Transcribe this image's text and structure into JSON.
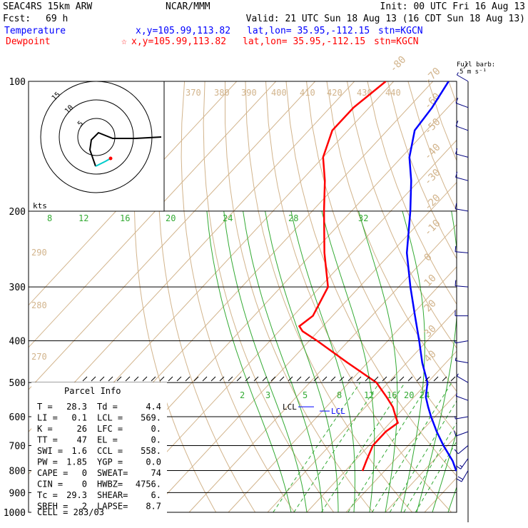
{
  "header": {
    "model": "SEAC4RS 15km ARW",
    "org": "NCAR/MMM",
    "init": "Init: 00 UTC Fri 16 Aug 13",
    "fcst_label": "Fcst:",
    "fcst_hours": "69 h",
    "valid": "Valid: 21 UTC Sun 18 Aug 13 (16 CDT Sun 18 Aug 13)"
  },
  "legend": {
    "temperature": {
      "label": "Temperature",
      "color": "#0000ff",
      "xy": "x,y=105.99,113.82",
      "latlon": "lat,lon= 35.95,-112.15",
      "stn": "stn=KGCN"
    },
    "dewpoint": {
      "label": "Dewpoint",
      "color": "#ff0000",
      "marker": "☆",
      "xy": "x,y=105.99,113.82",
      "latlon": "lat,lon= 35.95,-112.15",
      "stn": "stn=KGCN"
    }
  },
  "barb_key": {
    "line1": "Full barb:",
    "line2": "5 m s⁻¹"
  },
  "hodograph": {
    "units": "kts",
    "rings": [
      "5",
      "10",
      "15"
    ]
  },
  "parcel": {
    "title": "Parcel Info",
    "rows": [
      [
        "T  =",
        "28.3",
        "Td =",
        "4.4"
      ],
      [
        "LI =",
        "0.1",
        "LCL =",
        "569."
      ],
      [
        "K  =",
        "26",
        "LFC =",
        "0."
      ],
      [
        "TT =",
        "47",
        "EL  =",
        "0."
      ],
      [
        "SWI =",
        "1.6",
        "CCL =",
        "558."
      ],
      [
        "PW =",
        "1.85",
        "YGP =",
        "0.0"
      ],
      [
        "CAPE =",
        "0",
        "SWEAT=",
        "74"
      ],
      [
        "CIN =",
        "0",
        "HWBZ=",
        "4756."
      ],
      [
        "Tc =",
        "29.3",
        "SHEAR=",
        "6."
      ],
      [
        "SREH =",
        "2",
        "LAPSE=",
        "8.7"
      ]
    ],
    "cell": "CELL = 283/03"
  },
  "chart_data": {
    "type": "line",
    "chart_kind": "skew-T log-P",
    "y_axis": {
      "label": "",
      "scale": "log",
      "ticks": [
        100,
        200,
        300,
        400,
        500,
        600,
        700,
        800,
        900,
        1000
      ],
      "range": [
        1000,
        100
      ]
    },
    "isotherm_labels": [
      "-80",
      "-70",
      "-60",
      "-50",
      "-40",
      "-30",
      "-20",
      "-10",
      "0",
      "10",
      "20",
      "30",
      "40"
    ],
    "theta_labels": [
      "370",
      "380",
      "390",
      "400",
      "410",
      "420",
      "430",
      "440",
      "290",
      "280",
      "270"
    ],
    "moist_adiabat_labels": [
      "8",
      "12",
      "16",
      "20",
      "24",
      "28",
      "32"
    ],
    "mixing_ratio_labels": [
      "2",
      "3",
      "5",
      "8",
      "12",
      "16",
      "20",
      "24"
    ],
    "lcl_labels": [
      "LCL",
      "LCL"
    ],
    "series": [
      {
        "name": "Temperature",
        "color": "#0000ff",
        "pressure": [
          802,
          760,
          700,
          650,
          600,
          570,
          540,
          500,
          450,
          400,
          350,
          300,
          250,
          200,
          170,
          150,
          130,
          115,
          100
        ],
        "temp": [
          28.3,
          25,
          19,
          14,
          9,
          6,
          3,
          0,
          -6,
          -12,
          -19,
          -27,
          -36,
          -45,
          -52,
          -58,
          -63,
          -64,
          -66
        ]
      },
      {
        "name": "Dewpoint",
        "color": "#ff0000",
        "pressure": [
          802,
          760,
          700,
          650,
          620,
          600,
          570,
          540,
          500,
          450,
          400,
          380,
          370,
          350,
          300,
          250,
          200,
          170,
          150,
          130,
          115,
          100
        ],
        "temp": [
          4.4,
          3,
          1,
          1,
          2,
          0,
          -3,
          -7,
          -13,
          -25,
          -38,
          -44,
          -46,
          -45,
          -48,
          -57,
          -67,
          -74,
          -80,
          -84,
          -84,
          -82
        ]
      }
    ],
    "wind_barbs": [
      {
        "p": 800,
        "spd": 20,
        "dir": 210
      },
      {
        "p": 750,
        "spd": 15,
        "dir": 215
      },
      {
        "p": 700,
        "spd": 10,
        "dir": 230
      },
      {
        "p": 650,
        "spd": 10,
        "dir": 250
      },
      {
        "p": 600,
        "spd": 5,
        "dir": 260
      },
      {
        "p": 550,
        "spd": 5,
        "dir": 290
      },
      {
        "p": 500,
        "spd": 5,
        "dir": 300
      },
      {
        "p": 450,
        "spd": 5,
        "dir": 280
      },
      {
        "p": 400,
        "spd": 5,
        "dir": 260
      },
      {
        "p": 350,
        "spd": 10,
        "dir": 270
      },
      {
        "p": 300,
        "spd": 10,
        "dir": 275
      },
      {
        "p": 250,
        "spd": 10,
        "dir": 275
      },
      {
        "p": 200,
        "spd": 10,
        "dir": 280
      },
      {
        "p": 170,
        "spd": 10,
        "dir": 285
      },
      {
        "p": 150,
        "spd": 10,
        "dir": 285
      },
      {
        "p": 130,
        "spd": 10,
        "dir": 290
      },
      {
        "p": 115,
        "spd": 10,
        "dir": 290
      },
      {
        "p": 100,
        "spd": 5,
        "dir": 300
      }
    ]
  }
}
